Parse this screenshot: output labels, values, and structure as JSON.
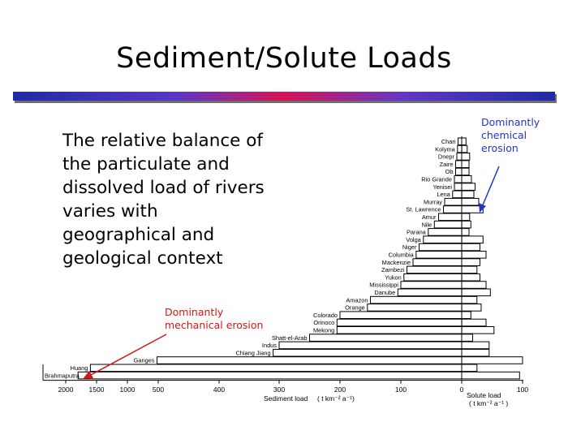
{
  "slide": {
    "title": "Sediment/Solute Loads",
    "body_lines": [
      "The relative balance of",
      "the particulate and",
      "dissolved load of rivers",
      "varies with",
      "geographical and",
      "geological context"
    ],
    "annotations": {
      "chemical": [
        "Dominantly",
        "chemical",
        "erosion"
      ],
      "mechanical": [
        "Dominantly",
        "mechanical erosion"
      ]
    }
  },
  "colors": {
    "chemical_annotation": "#2434c8",
    "mechanical_annotation": "#d21616",
    "bars": "#000000"
  },
  "chart_data": {
    "type": "bar",
    "orientation": "horizontal-bidirectional",
    "xlabel_sediment": "Sediment load",
    "xlabel_sediment_units": "( t km⁻² a⁻¹)",
    "xlabel_solute": "Solute load",
    "xlabel_solute_units": "( t km⁻² a⁻¹ )",
    "sediment_ticks": [
      "2000",
      "1500",
      "1000",
      "500",
      "400",
      "300",
      "200",
      "100",
      "0"
    ],
    "solute_ticks": [
      "0",
      "100"
    ],
    "categories": [
      "Chari",
      "Kolyma",
      "Dnepr",
      "Zaire",
      "Ob",
      "Rio Grande",
      "Yenisei",
      "Lena",
      "Murray",
      "St. Lawrence",
      "Amur",
      "Nile",
      "Parana",
      "Volga",
      "Niger",
      "Columbia",
      "Mackenzie",
      "Zambezi",
      "Yukon",
      "Mississippi",
      "Danube",
      "Amazon",
      "Orange",
      "Colorado",
      "Orinoco",
      "Mekong",
      "Shatt-el-Arab",
      "Indus",
      "Chiang Jiang",
      "Ganges",
      "Huang",
      "Brahmaputra"
    ],
    "series": [
      {
        "name": "Sediment load",
        "values": [
          6,
          7,
          8,
          10,
          10,
          12,
          12,
          15,
          28,
          30,
          38,
          45,
          55,
          63,
          70,
          75,
          80,
          90,
          95,
          100,
          105,
          150,
          155,
          200,
          205,
          205,
          250,
          300,
          310,
          520,
          1600,
          1800
        ]
      },
      {
        "name": "Solute load",
        "values": [
          7,
          9,
          13,
          12,
          12,
          16,
          22,
          20,
          28,
          35,
          13,
          15,
          12,
          35,
          30,
          40,
          30,
          25,
          30,
          40,
          47,
          25,
          32,
          15,
          40,
          53,
          18,
          45,
          45,
          100,
          25,
          95
        ]
      }
    ]
  }
}
